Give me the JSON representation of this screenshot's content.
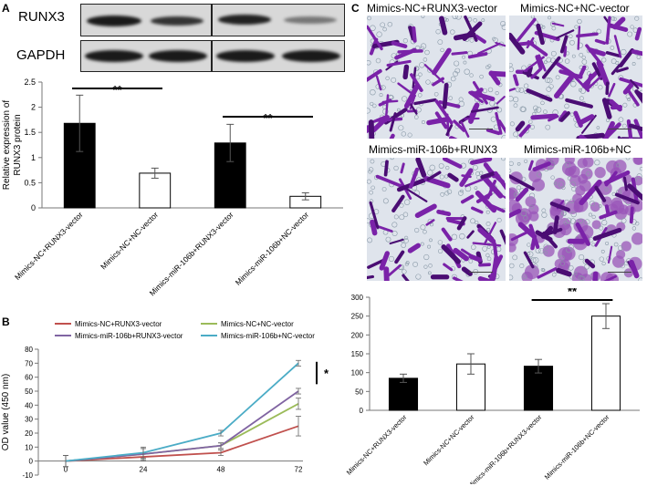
{
  "panels": {
    "a": "A",
    "b": "B",
    "c": "C"
  },
  "blot": {
    "labels": [
      "RUNX3",
      "GAPDH"
    ]
  },
  "micrographs": [
    "Mimics-NC+RUNX3-vector",
    "Mimics-NC+NC-vector",
    "Mimics-miR-106b+RUNX3",
    "Mimics-miR-106b+NC"
  ],
  "chart_data": [
    {
      "type": "bar",
      "categories": [
        "Mimics-NC+RUNX3-vector",
        "Mimics-NC+NC-vector",
        "Mimics-miR-106b+RUNX3-vector",
        "Mimics-miR-106b+NC-vector"
      ],
      "values": [
        1.68,
        0.69,
        1.29,
        0.23
      ],
      "errors": [
        0.56,
        0.1,
        0.37,
        0.07
      ],
      "colors": [
        "#000000",
        "#ffffff",
        "#000000",
        "#ffffff"
      ],
      "ylabel": "Relative expression of RUNX3 protein",
      "ylim": [
        0,
        2.5
      ],
      "yticks": [
        "0",
        "0.5",
        "1",
        "1.5",
        "2",
        "2.5"
      ],
      "significance": [
        {
          "from": 0,
          "to": 1,
          "label": "**"
        },
        {
          "from": 2,
          "to": 3,
          "label": "**"
        }
      ],
      "grid": false
    },
    {
      "type": "line",
      "x": [
        0,
        24,
        48,
        72
      ],
      "xticks": [
        "0",
        "24",
        "48",
        "72"
      ],
      "series": [
        {
          "name": "Mimics-NC+RUNX3-vector",
          "values": [
            0,
            3,
            6,
            25
          ],
          "errors": [
            4,
            3,
            2,
            7
          ],
          "color": "#c0504d"
        },
        {
          "name": "Mimics-NC+NC-vector",
          "values": [
            0,
            5,
            11,
            41
          ],
          "errors": [
            4,
            4,
            2,
            4
          ],
          "color": "#9bbb59"
        },
        {
          "name": "Mimics-miR-106b+RUNX3-vector",
          "values": [
            0,
            5,
            11,
            50
          ],
          "errors": [
            4,
            4,
            2,
            2
          ],
          "color": "#8064a2"
        },
        {
          "name": "Mimics-miR-106b+NC-vector",
          "values": [
            0,
            6,
            20,
            70
          ],
          "errors": [
            4,
            4,
            2,
            2
          ],
          "color": "#4bacc6"
        }
      ],
      "ylabel": "OD value (450 nm)",
      "ylim": [
        -10,
        80
      ],
      "yticks": [
        "-10",
        "0",
        "10",
        "20",
        "30",
        "40",
        "50",
        "60",
        "70",
        "80"
      ],
      "annotations": [
        "*"
      ],
      "legend": "top",
      "grid": false
    },
    {
      "type": "bar",
      "categories": [
        "Mimics-NC+RUNX3-vector",
        "Mimics-NC+NC-vector",
        "Mimics-miR-106b+RUNX3-vector",
        "Mimics-miR-106b+NC-vector"
      ],
      "values": [
        85,
        123,
        117,
        250
      ],
      "errors": [
        11,
        27,
        18,
        33
      ],
      "colors": [
        "#000000",
        "#ffffff",
        "#000000",
        "#ffffff"
      ],
      "ylim": [
        0,
        300
      ],
      "yticks": [
        "0",
        "50",
        "100",
        "150",
        "200",
        "250",
        "300"
      ],
      "significance": [
        {
          "from": 2,
          "to": 3,
          "label": "**"
        }
      ],
      "grid": false
    }
  ]
}
